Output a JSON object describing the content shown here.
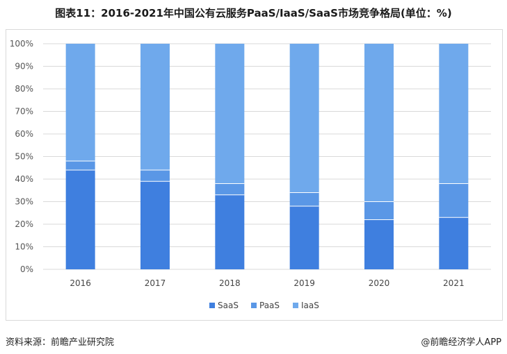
{
  "chart_data": {
    "type": "bar",
    "stacked": true,
    "title": "图表11：2016-2021年中国公有云服务PaaS/IaaS/SaaS市场竞争格局(单位：%)",
    "categories": [
      "2016",
      "2017",
      "2018",
      "2019",
      "2020",
      "2021"
    ],
    "series": [
      {
        "name": "SaaS",
        "color": "#3f7fdf",
        "values": [
          44,
          39,
          33,
          28,
          22,
          23
        ]
      },
      {
        "name": "PaaS",
        "color": "#5a97e6",
        "values": [
          4,
          5,
          5,
          6,
          8,
          15
        ]
      },
      {
        "name": "IaaS",
        "color": "#6fa9ec",
        "values": [
          52,
          56,
          62,
          66,
          70,
          62
        ]
      }
    ],
    "y_ticks": [
      "0%",
      "10%",
      "20%",
      "30%",
      "40%",
      "50%",
      "60%",
      "70%",
      "80%",
      "90%",
      "100%"
    ],
    "ylim": [
      0,
      100
    ],
    "grid": true,
    "legend_position": "bottom"
  },
  "footer": {
    "source": "资料来源：前瞻产业研究院",
    "brand": "@前瞻经济学人APP"
  }
}
